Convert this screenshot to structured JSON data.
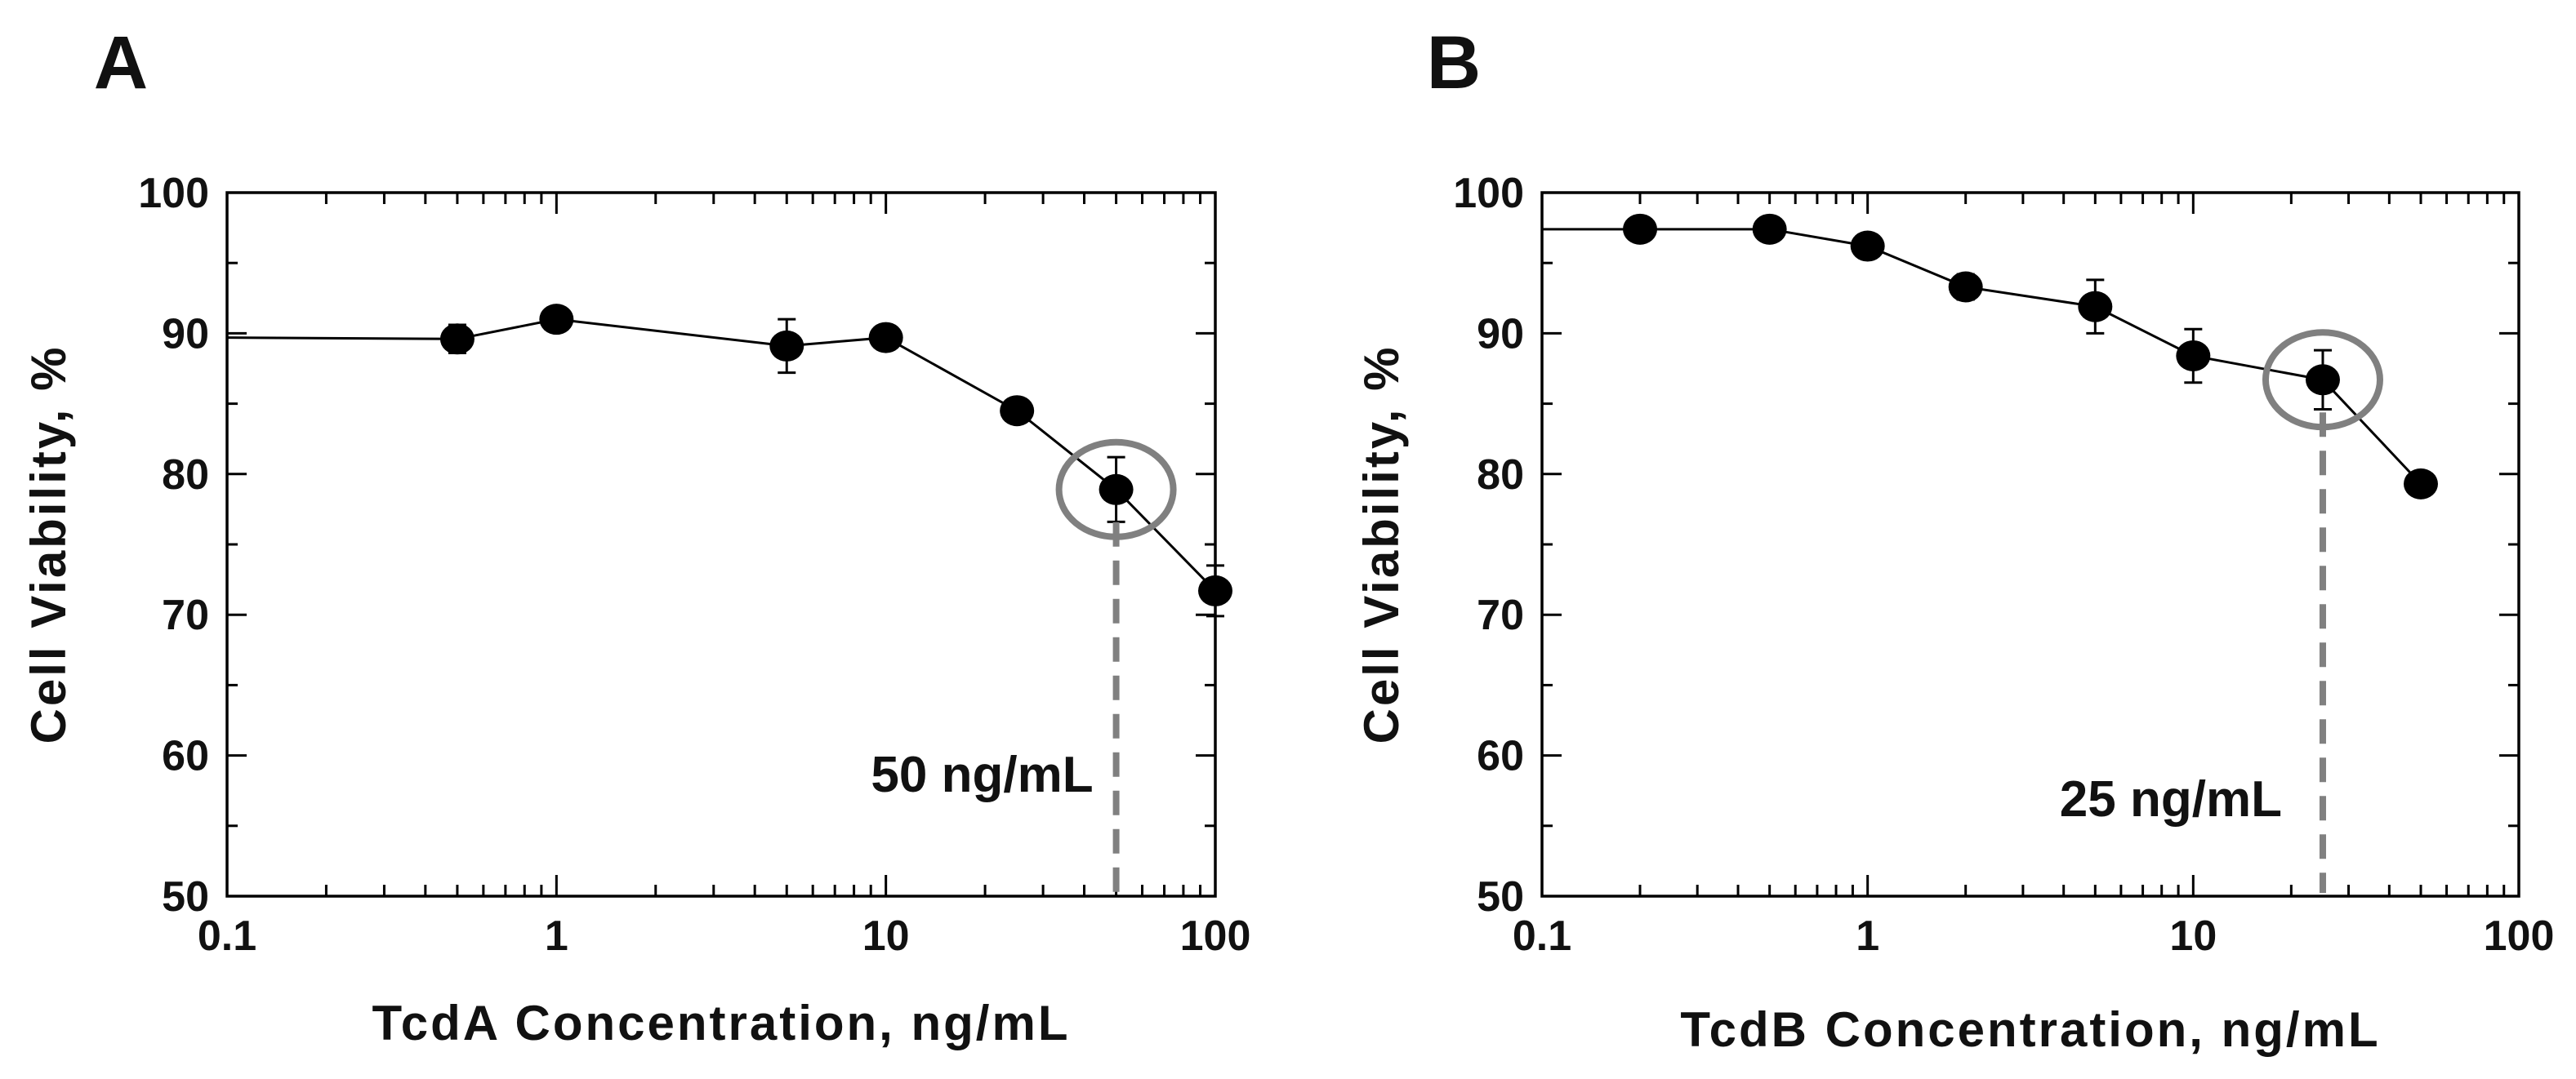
{
  "colors": {
    "ink": "#000000",
    "highlight": "#808080",
    "background": "#ffffff"
  },
  "chart_data": [
    {
      "type": "line",
      "panel_label": "A",
      "xscale": "log",
      "xlim": [
        0.1,
        100
      ],
      "ylim": [
        50,
        100
      ],
      "x_ticks": [
        "0.1",
        "1",
        "10",
        "100"
      ],
      "y_ticks": [
        "50",
        "60",
        "70",
        "80",
        "90",
        "100"
      ],
      "xlabel": "TcdA Concentration, ng/mL",
      "ylabel": "Cell Viability, %",
      "grid": false,
      "series": [
        {
          "name": "TcdA",
          "line_start": {
            "x": 0.1,
            "y": 89.7
          },
          "points": [
            {
              "x": 0.5,
              "y": 89.6,
              "err": 1.0
            },
            {
              "x": 1,
              "y": 91.0,
              "err": 0.5
            },
            {
              "x": 5,
              "y": 89.1,
              "err": 1.9
            },
            {
              "x": 10,
              "y": 89.7,
              "err": 0.6
            },
            {
              "x": 25,
              "y": 84.5,
              "err": 0.6
            },
            {
              "x": 50,
              "y": 78.9,
              "err": 2.3
            },
            {
              "x": 100,
              "y": 71.7,
              "err": 1.8
            }
          ]
        }
      ],
      "highlight": {
        "x": 50,
        "y": 78.9,
        "label": "50 ng/mL"
      }
    },
    {
      "type": "line",
      "panel_label": "B",
      "xscale": "log",
      "xlim": [
        0.1,
        100
      ],
      "ylim": [
        50,
        100
      ],
      "x_ticks": [
        "0.1",
        "1",
        "10",
        "100"
      ],
      "y_ticks": [
        "50",
        "60",
        "70",
        "80",
        "90",
        "100"
      ],
      "xlabel": "TcdB Concentration, ng/mL",
      "ylabel": "Cell Viability, %",
      "grid": false,
      "series": [
        {
          "name": "TcdB",
          "line_start": {
            "x": 0.1,
            "y": 97.4
          },
          "points": [
            {
              "x": 0.2,
              "y": 97.4,
              "err": 0.4
            },
            {
              "x": 0.5,
              "y": 97.4,
              "err": 0.4
            },
            {
              "x": 1,
              "y": 96.2,
              "err": 0.5
            },
            {
              "x": 2,
              "y": 93.3,
              "err": 0.9
            },
            {
              "x": 5,
              "y": 91.9,
              "err": 1.9
            },
            {
              "x": 10,
              "y": 88.4,
              "err": 1.9
            },
            {
              "x": 25,
              "y": 86.7,
              "err": 2.1
            },
            {
              "x": 50,
              "y": 79.3,
              "err": 0.5
            }
          ]
        }
      ],
      "highlight": {
        "x": 25,
        "y": 86.7,
        "label": "25 ng/mL"
      }
    }
  ]
}
